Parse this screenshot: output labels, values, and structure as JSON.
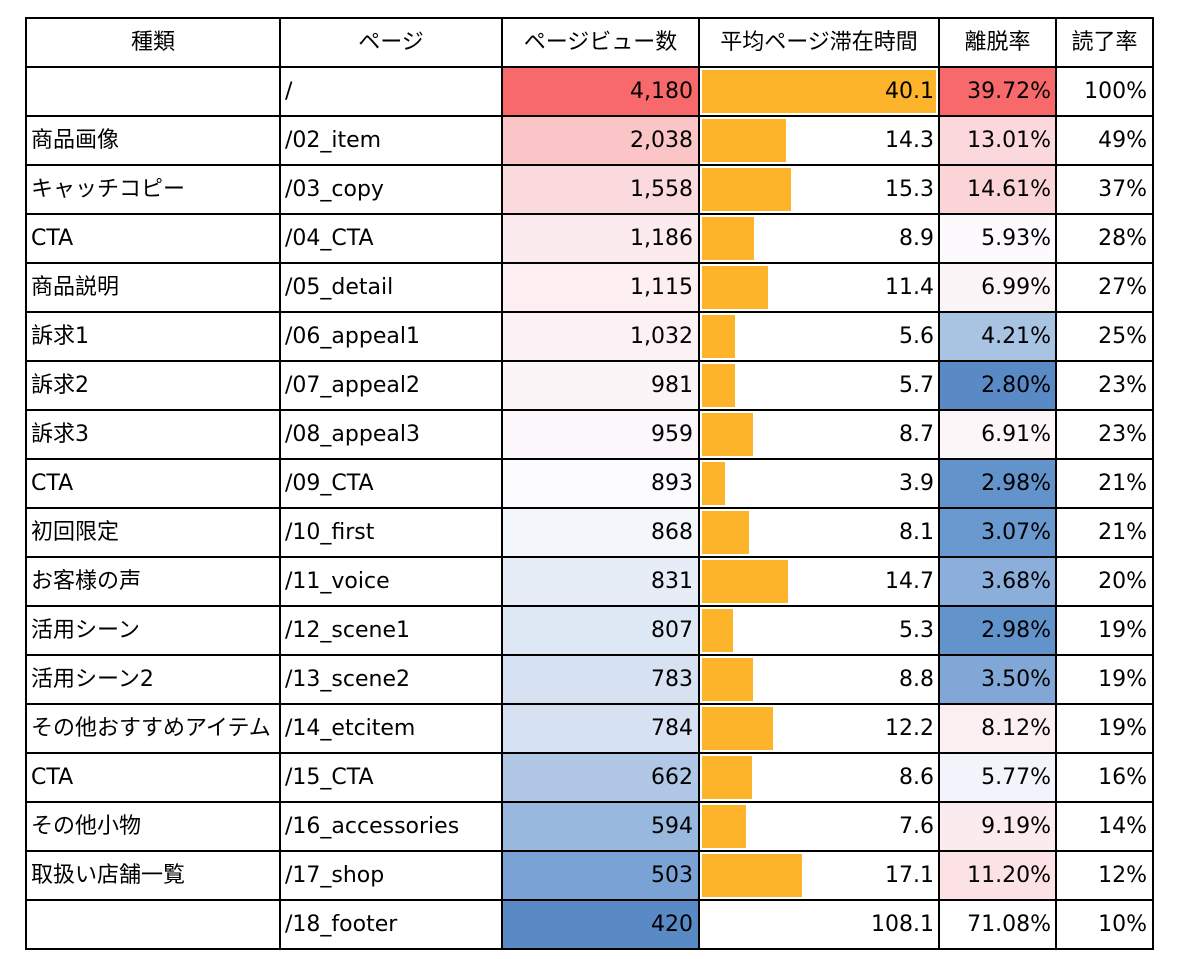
{
  "headers": [
    "種類",
    "ページ",
    "ページビュー数",
    "平均ページ滞在時間",
    "離脱率",
    "読了率"
  ],
  "colors": {
    "bar": "#FDB42B",
    "high": "#F8696B",
    "mid": "#FCFCFF",
    "low": "#5A8AC6"
  },
  "max_time": 40.1,
  "rows": [
    {
      "type": "",
      "page": "/",
      "pv": "4,180",
      "time": "40.1",
      "exit": "39.72%",
      "read": "100%",
      "pv_color": "#F8696B",
      "exit_color": "#F8696B",
      "time_fill": 1.0
    },
    {
      "type": "商品画像",
      "page": "/02_item",
      "pv": "2,038",
      "time": "14.3",
      "exit": "13.01%",
      "read": "49%",
      "pv_color": "#FBC5C8",
      "exit_color": "#FBD8DB",
      "time_fill": 0.357
    },
    {
      "type": "キャッチコピー",
      "page": "/03_copy",
      "pv": "1,558",
      "time": "15.3",
      "exit": "14.61%",
      "read": "37%",
      "pv_color": "#FBDADD",
      "exit_color": "#FBD4D7",
      "time_fill": 0.382
    },
    {
      "type": "CTA",
      "page": "/04_CTA",
      "pv": "1,186",
      "time": "8.9",
      "exit": "5.93%",
      "read": "28%",
      "pv_color": "#FCEBEE",
      "exit_color": "#FCFAFD",
      "time_fill": 0.222
    },
    {
      "type": "商品説明",
      "page": "/05_detail",
      "pv": "1,115",
      "time": "11.4",
      "exit": "6.99%",
      "read": "27%",
      "pv_color": "#FCEEF1",
      "exit_color": "#FCF5F8",
      "time_fill": 0.284
    },
    {
      "type": "訴求1",
      "page": "/06_appeal1",
      "pv": "1,032",
      "time": "5.6",
      "exit": "4.21%",
      "read": "25%",
      "pv_color": "#FCF2F5",
      "exit_color": "#A9C3E3",
      "time_fill": 0.14
    },
    {
      "type": "訴求2",
      "page": "/07_appeal2",
      "pv": "981",
      "time": "5.7",
      "exit": "2.80%",
      "read": "23%",
      "pv_color": "#FCF5F8",
      "exit_color": "#5A8AC6",
      "time_fill": 0.142
    },
    {
      "type": "訴求3",
      "page": "/08_appeal3",
      "pv": "959",
      "time": "8.7",
      "exit": "6.91%",
      "read": "23%",
      "pv_color": "#FCF7FA",
      "exit_color": "#FCF6F9",
      "time_fill": 0.217
    },
    {
      "type": "CTA",
      "page": "/09_CTA",
      "pv": "893",
      "time": "3.9",
      "exit": "2.98%",
      "read": "21%",
      "pv_color": "#FCFBFE",
      "exit_color": "#6393CB",
      "time_fill": 0.097
    },
    {
      "type": "初回限定",
      "page": "/10_first",
      "pv": "868",
      "time": "8.1",
      "exit": "3.07%",
      "read": "21%",
      "pv_color": "#F3F6FB",
      "exit_color": "#6999CE",
      "time_fill": 0.202
    },
    {
      "type": "お客様の声",
      "page": "/11_voice",
      "pv": "831",
      "time": "14.7",
      "exit": "3.68%",
      "read": "20%",
      "pv_color": "#E6EDF7",
      "exit_color": "#8BAFDA",
      "time_fill": 0.367
    },
    {
      "type": "活用シーン",
      "page": "/12_scene1",
      "pv": "807",
      "time": "5.3",
      "exit": "2.98%",
      "read": "19%",
      "pv_color": "#DEE7F4",
      "exit_color": "#6393CB",
      "time_fill": 0.132
    },
    {
      "type": "活用シーン2",
      "page": "/13_scene2",
      "pv": "783",
      "time": "8.8",
      "exit": "3.50%",
      "read": "19%",
      "pv_color": "#D6E1F1",
      "exit_color": "#80A7D6",
      "time_fill": 0.219
    },
    {
      "type": "その他おすすめアイテム",
      "page": "/14_etcitem",
      "pv": "784",
      "time": "12.2",
      "exit": "8.12%",
      "read": "19%",
      "pv_color": "#D6E1F1",
      "exit_color": "#FCEFF2",
      "time_fill": 0.304
    },
    {
      "type": "CTA",
      "page": "/15_CTA",
      "pv": "662",
      "time": "8.6",
      "exit": "5.77%",
      "read": "16%",
      "pv_color": "#B0C8E6",
      "exit_color": "#F1F5FB",
      "time_fill": 0.214
    },
    {
      "type": "その他小物",
      "page": "/16_accessories",
      "pv": "594",
      "time": "7.6",
      "exit": "9.19%",
      "read": "14%",
      "pv_color": "#99B8DE",
      "exit_color": "#FCEBEE",
      "time_fill": 0.19
    },
    {
      "type": "取扱い店舗一覧",
      "page": "/17_shop",
      "pv": "503",
      "time": "17.1",
      "exit": "11.20%",
      "read": "12%",
      "pv_color": "#7BA2D4",
      "exit_color": "#FCE2E5",
      "time_fill": 0.426
    },
    {
      "type": "",
      "page": "/18_footer",
      "pv": "420",
      "time": "108.1",
      "exit": "71.08%",
      "read": "10%",
      "pv_color": "#5A8AC6",
      "exit_color": "#FFFFFF",
      "time_fill": 0
    }
  ]
}
